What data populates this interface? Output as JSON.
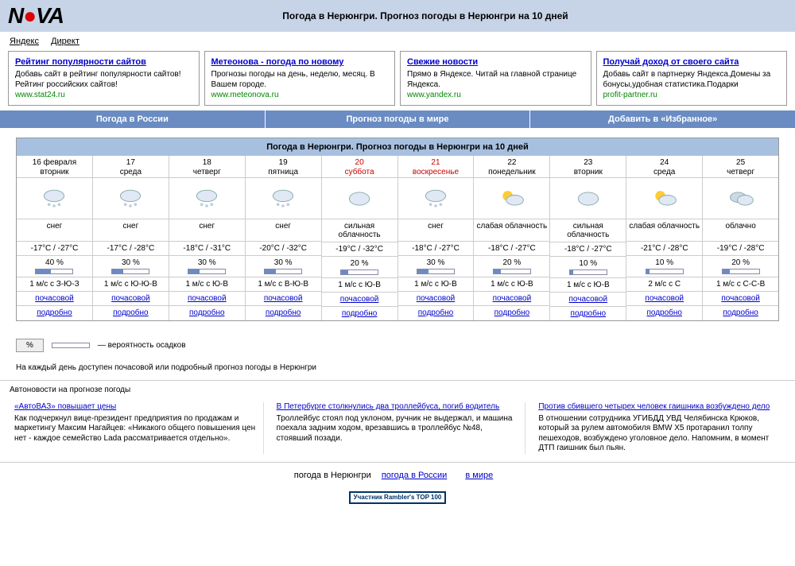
{
  "header": {
    "logo_black": "N",
    "logo_red": "●",
    "logo_rest": "VA",
    "title": "Погода в Нерюнгри. Прогноз погоды в Нерюнгри на 10 дней"
  },
  "yandex": {
    "label1": "Яндекс",
    "label2": "Директ"
  },
  "ads": [
    {
      "title": "Рейтинг популярности сайтов",
      "text": "Добавь сайт в рейтинг популярности сайтов! Рейтинг российских сайтов!",
      "url": "www.stat24.ru"
    },
    {
      "title": "Метеонова - погода по новому",
      "text": "Прогнозы погоды на день, неделю, месяц. В Вашем городе.",
      "url": "www.meteonova.ru"
    },
    {
      "title": "Свежие новости",
      "text": "Прямо в Яндексе. Читай на главной странице Яндекса.",
      "url": "www.yandex.ru"
    },
    {
      "title": "Получай доход от своего сайта",
      "text": "Добавь сайт в партнерку Яндекса.Домены за бонусы,удобная статистика.Подарки",
      "url": "profit-partner.ru"
    }
  ],
  "nav": {
    "item1": "Погода в России",
    "item2": "Прогноз погоды в мире",
    "item3": "Добавить в «Избранное»"
  },
  "forecast": {
    "title": "Погода в Нерюнгри. Прогноз погоды в Нерюнгри на 10 дней",
    "hourly_label": "почасовой",
    "detail_label": "подробно",
    "days": [
      {
        "date": "16 февраля",
        "dow": "вторник",
        "weekend": false,
        "icon": "snow",
        "cond": "снег",
        "temp": "-17°C / -27°C",
        "prob": "40 %",
        "prob_pct": 40,
        "wind": "1 м/с с З-Ю-З"
      },
      {
        "date": "17",
        "dow": "среда",
        "weekend": false,
        "icon": "snow",
        "cond": "снег",
        "temp": "-17°C / -28°C",
        "prob": "30 %",
        "prob_pct": 30,
        "wind": "1 м/с с Ю-Ю-В"
      },
      {
        "date": "18",
        "dow": "четверг",
        "weekend": false,
        "icon": "snow",
        "cond": "снег",
        "temp": "-18°C / -31°C",
        "prob": "30 %",
        "prob_pct": 30,
        "wind": "1 м/с с Ю-В"
      },
      {
        "date": "19",
        "dow": "пятница",
        "weekend": false,
        "icon": "snow",
        "cond": "снег",
        "temp": "-20°C / -32°C",
        "prob": "30 %",
        "prob_pct": 30,
        "wind": "1 м/с с В-Ю-В"
      },
      {
        "date": "20",
        "dow": "суббота",
        "weekend": true,
        "icon": "cloudy",
        "cond": "сильная облачность",
        "temp": "-19°C / -32°C",
        "prob": "20 %",
        "prob_pct": 20,
        "wind": "1 м/с с Ю-В"
      },
      {
        "date": "21",
        "dow": "воскресенье",
        "weekend": true,
        "icon": "snow",
        "cond": "снег",
        "temp": "-18°C / -27°C",
        "prob": "30 %",
        "prob_pct": 30,
        "wind": "1 м/с с Ю-В"
      },
      {
        "date": "22",
        "dow": "понедельник",
        "weekend": false,
        "icon": "partly",
        "cond": "слабая облачность",
        "temp": "-18°C / -27°C",
        "prob": "20 %",
        "prob_pct": 20,
        "wind": "1 м/с с Ю-В"
      },
      {
        "date": "23",
        "dow": "вторник",
        "weekend": false,
        "icon": "cloudy",
        "cond": "сильная облачность",
        "temp": "-18°C / -27°C",
        "prob": "10 %",
        "prob_pct": 10,
        "wind": "1 м/с с Ю-В"
      },
      {
        "date": "24",
        "dow": "среда",
        "weekend": false,
        "icon": "partly",
        "cond": "слабая облачность",
        "temp": "-21°C / -28°C",
        "prob": "10 %",
        "prob_pct": 10,
        "wind": "2 м/с с С"
      },
      {
        "date": "25",
        "dow": "четверг",
        "weekend": false,
        "icon": "cloudy2",
        "cond": "облачно",
        "temp": "-19°C / -28°C",
        "prob": "20 %",
        "prob_pct": 20,
        "wind": "1 м/с с С-С-В"
      }
    ]
  },
  "legend": {
    "btn": "%",
    "text": "— вероятность осадков"
  },
  "note": "На каждый день доступен почасовой или подробный прогноз погоды в Нерюнгри",
  "news_header": "Автоновости на прогнозе погоды",
  "news": [
    {
      "title": "«АвтоВАЗ» повышает цены",
      "text": "Как подчеркнул вице-президент предприятия по продажам и маркетингу Максим Нагайцев: «Никакого общего повышения цен нет - каждое семейство Lada рассматривается отдельно»."
    },
    {
      "title": "В Петербурге столкнулись два троллейбуса, погиб водитель",
      "text": "Троллейбус стоял под уклоном, ручник не выдержал, и машина поехала задним ходом, врезавшись в троллейбус №48, стоявший позади."
    },
    {
      "title": "Против сбившего четырех человек гаишника возбуждено дело",
      "text": "В отношении сотрудника УГИБДД УВД Челябинска Крюков, который за рулем автомобиля BMW X5 протаранил толпу пешеходов, возбуждено уголовное дело. Напомним, в момент ДТП гаишник был пьян."
    }
  ],
  "footer": {
    "link1": "погода в Нерюнгри",
    "link2": "погода в России",
    "link3": "в мире",
    "rambler": "Участник Rambler's TOP 100"
  }
}
